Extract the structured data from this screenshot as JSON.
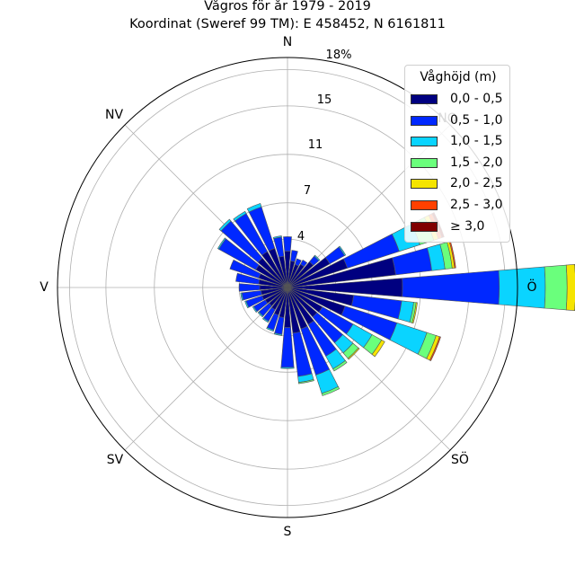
{
  "title_line1": "Vågros för år 1979 - 2019",
  "title_line2": "Koordinat (Sweref 99 TM): E 458452, N 6161811",
  "chart_data": {
    "type": "wind-rose",
    "directions": [
      "N",
      "NO",
      "Ö",
      "SÖ",
      "S",
      "SV",
      "V",
      "NV"
    ],
    "direction_labels": [
      "N",
      "NO",
      "Ö",
      "SÖ",
      "S",
      "SV",
      "V",
      "NV"
    ],
    "radial_ticks": [
      "4",
      "7",
      "11",
      "15",
      "18%"
    ],
    "rmax": 19,
    "legend_title": "Våghöjd (m)",
    "legend_position": "top-right",
    "bins": [
      "0,0 - 0,5",
      "0,5 - 1,0",
      "1,0 - 1,5",
      "1,5 - 2,0",
      "2,0 - 2,5",
      "2,5 - 3,0",
      "≥ 3,0"
    ],
    "colors": [
      "#000080",
      "#0028ff",
      "#0ad4ff",
      "#6aff7c",
      "#f5e400",
      "#ff4000",
      "#800000"
    ],
    "sectors": [
      {
        "bearing": 0,
        "values": [
          3.0,
          1.2,
          0,
          0,
          0,
          0,
          0
        ]
      },
      {
        "bearing": 11.25,
        "values": [
          2.2,
          0.9,
          0,
          0,
          0,
          0,
          0
        ]
      },
      {
        "bearing": 22.5,
        "values": [
          2.0,
          0.5,
          0,
          0,
          0,
          0,
          0
        ]
      },
      {
        "bearing": 33.75,
        "values": [
          2.2,
          0.4,
          0,
          0,
          0,
          0,
          0
        ]
      },
      {
        "bearing": 45,
        "values": [
          2.8,
          0.6,
          0.1,
          0,
          0,
          0,
          0
        ]
      },
      {
        "bearing": 56.25,
        "values": [
          4.0,
          1.4,
          0.1,
          0,
          0,
          0,
          0
        ]
      },
      {
        "bearing": 67.5,
        "values": [
          5.2,
          4.5,
          1.8,
          1.2,
          0.4,
          0.3,
          0.2
        ]
      },
      {
        "bearing": 78.75,
        "values": [
          9.0,
          3.0,
          1.1,
          0.6,
          0.2,
          0.1,
          0
        ]
      },
      {
        "bearing": 90,
        "values": [
          9.5,
          8.0,
          3.8,
          1.8,
          0.7,
          0.3,
          0.3
        ]
      },
      {
        "bearing": 101.25,
        "values": [
          5.5,
          4.0,
          1.0,
          0.2,
          0.1,
          0,
          0
        ]
      },
      {
        "bearing": 112.5,
        "values": [
          5.0,
          4.5,
          2.6,
          0.8,
          0.3,
          0.1,
          0
        ]
      },
      {
        "bearing": 123.75,
        "values": [
          3.3,
          2.9,
          1.8,
          0.9,
          0.3,
          0,
          0
        ]
      },
      {
        "bearing": 135,
        "values": [
          3.2,
          2.8,
          1.1,
          0.6,
          0.1,
          0,
          0
        ]
      },
      {
        "bearing": 146.25,
        "values": [
          3.5,
          3.0,
          1.2,
          0.2,
          0,
          0,
          0
        ]
      },
      {
        "bearing": 157.5,
        "values": [
          3.6,
          4.0,
          1.6,
          0.2,
          0,
          0,
          0
        ]
      },
      {
        "bearing": 168.75,
        "values": [
          3.8,
          3.6,
          0.5,
          0.1,
          0,
          0,
          0
        ]
      },
      {
        "bearing": 180,
        "values": [
          3.3,
          3.3,
          0.1,
          0,
          0,
          0,
          0
        ]
      },
      {
        "bearing": 191.25,
        "values": [
          2.5,
          1.4,
          0.1,
          0,
          0,
          0,
          0
        ]
      },
      {
        "bearing": 202.5,
        "values": [
          2.4,
          1.3,
          0.1,
          0,
          0,
          0,
          0
        ]
      },
      {
        "bearing": 213.75,
        "values": [
          2.1,
          1.1,
          0.1,
          0,
          0,
          0,
          0
        ]
      },
      {
        "bearing": 225,
        "values": [
          2.0,
          1.1,
          0.1,
          0,
          0,
          0,
          0
        ]
      },
      {
        "bearing": 236.25,
        "values": [
          2.1,
          1.1,
          0.1,
          0,
          0,
          0,
          0
        ]
      },
      {
        "bearing": 247.5,
        "values": [
          2.2,
          1.4,
          0.1,
          0,
          0,
          0,
          0
        ]
      },
      {
        "bearing": 258.75,
        "values": [
          2.2,
          1.6,
          0.1,
          0,
          0,
          0,
          0
        ]
      },
      {
        "bearing": 270,
        "values": [
          2.3,
          1.7,
          0,
          0,
          0,
          0,
          0
        ]
      },
      {
        "bearing": 281.25,
        "values": [
          2.4,
          1.9,
          0,
          0,
          0,
          0,
          0
        ]
      },
      {
        "bearing": 292.5,
        "values": [
          2.5,
          2.5,
          0,
          0,
          0,
          0,
          0
        ]
      },
      {
        "bearing": 303.75,
        "values": [
          3.0,
          3.5,
          0.1,
          0,
          0,
          0,
          0
        ]
      },
      {
        "bearing": 315,
        "values": [
          3.2,
          4.0,
          0.2,
          0,
          0,
          0,
          0
        ]
      },
      {
        "bearing": 326.25,
        "values": [
          3.4,
          3.6,
          0.2,
          0,
          0,
          0,
          0
        ]
      },
      {
        "bearing": 337.5,
        "values": [
          3.4,
          3.6,
          0.3,
          0,
          0,
          0,
          0
        ]
      },
      {
        "bearing": 348.75,
        "values": [
          2.6,
          1.6,
          0.1,
          0,
          0,
          0,
          0
        ]
      }
    ]
  }
}
